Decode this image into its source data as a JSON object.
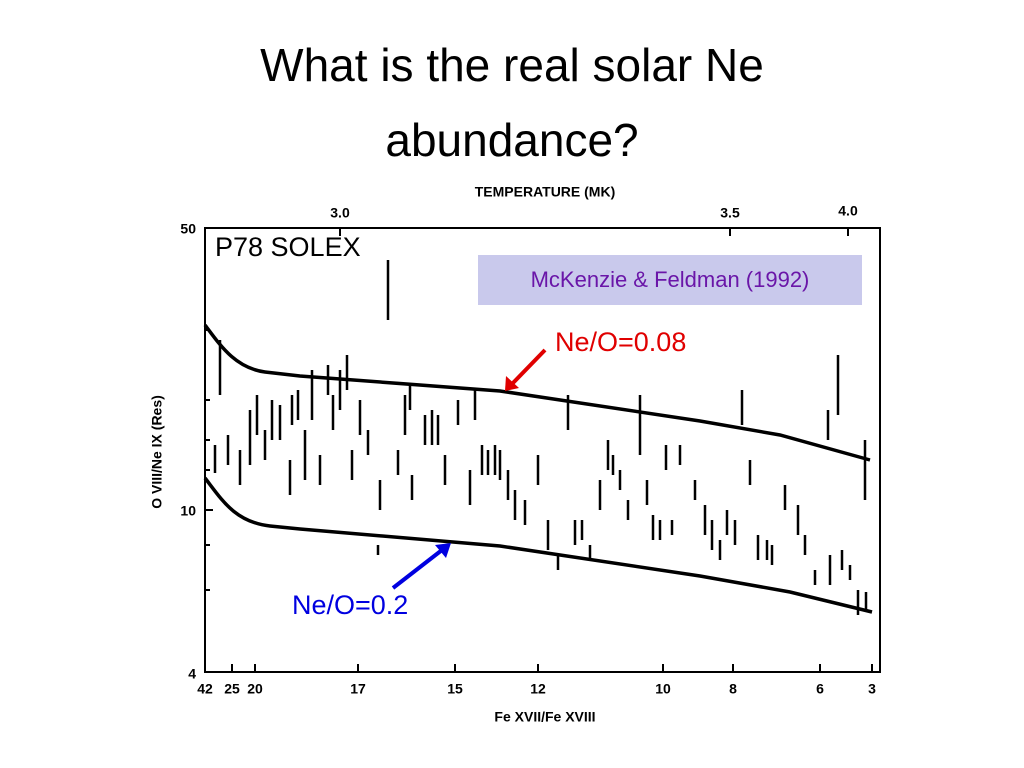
{
  "title_lines": [
    "What is the real solar Ne",
    "abundance?"
  ],
  "figure": {
    "top_axis_title": "TEMPERATURE (MK)",
    "top_ticks": [
      "3.0",
      "3.5",
      "4.0"
    ],
    "y_axis_title": "O VIII/Ne IX (Res)",
    "y_ticks": [
      "50",
      "10",
      "4"
    ],
    "x_axis_title": "Fe XVII/Fe XVIII",
    "x_ticks": [
      "42",
      "25",
      "20",
      "17",
      "15",
      "12",
      "10",
      "8",
      "6",
      "3"
    ],
    "label": "P78 SOLEX",
    "source": "McKenzie & Feldman (1992)",
    "annotations": [
      "Ne/O=0.08",
      "Ne/O=0.2"
    ]
  }
}
